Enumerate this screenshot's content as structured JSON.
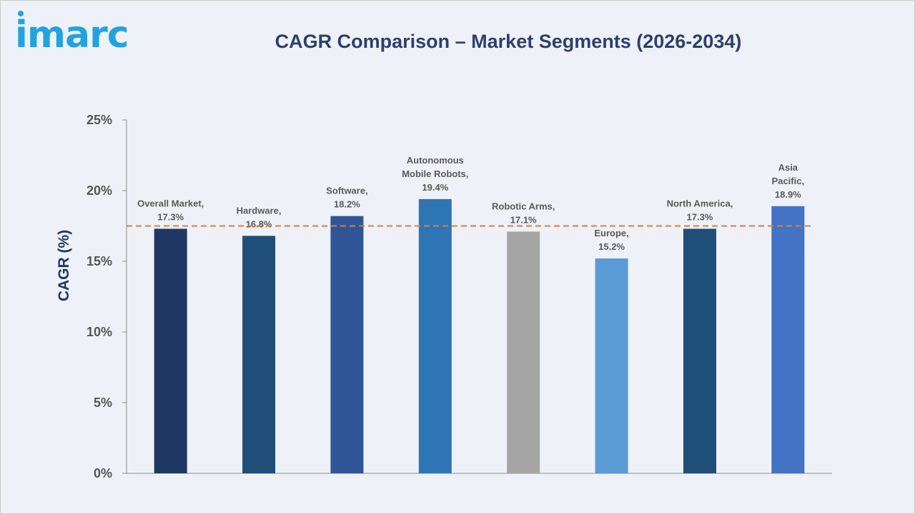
{
  "brand": {
    "logo_text": "imarc"
  },
  "chart_data": {
    "type": "bar",
    "title": "CAGR Comparison – Market Segments (2026-2034)",
    "xlabel": "",
    "ylabel": "CAGR (%)",
    "ylim": [
      0,
      25
    ],
    "yticks": [
      0,
      5,
      10,
      15,
      20,
      25
    ],
    "ytick_labels": [
      "0%",
      "5%",
      "10%",
      "15%",
      "20%",
      "25%"
    ],
    "categories": [
      "Overall Market",
      "Hardware",
      "Software",
      "Autonomous Mobile Robots",
      "Robotic Arms",
      "Europe",
      "North America",
      "Asia Pacific"
    ],
    "values": [
      17.3,
      16.8,
      18.2,
      19.4,
      17.1,
      15.2,
      17.3,
      18.9
    ],
    "data_labels": [
      [
        "Overall Market,",
        "17.3%"
      ],
      [
        "Hardware,",
        "16.8%"
      ],
      [
        "Software,",
        "18.2%"
      ],
      [
        "Autonomous",
        "Mobile Robots,",
        "19.4%"
      ],
      [
        "Robotic Arms,",
        "17.1%"
      ],
      [
        "Europe,",
        "15.2%"
      ],
      [
        "North America,",
        "17.3%"
      ],
      [
        "Asia",
        "Pacific,",
        "18.9%"
      ]
    ],
    "bar_colors": [
      "#1f3864",
      "#1f4e79",
      "#2f5597",
      "#2e75b6",
      "#a6a6a6",
      "#5b9bd5",
      "#1f4e79",
      "#4472c4"
    ],
    "reference_line": {
      "value": 17.5,
      "color": "#e07b39",
      "style": "dashed"
    },
    "grid": false,
    "legend": "none"
  }
}
